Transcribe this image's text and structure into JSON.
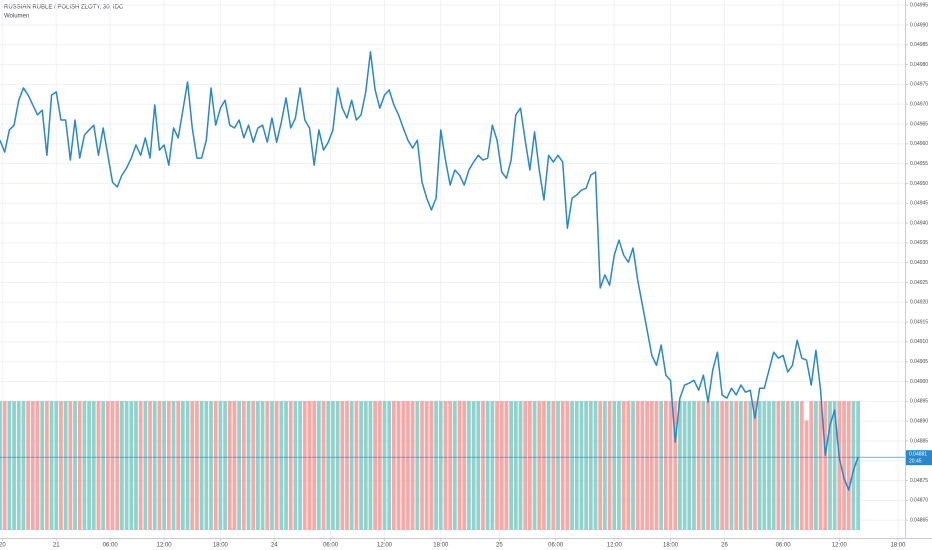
{
  "chart_data": {
    "type": "line",
    "title": "RUSSIAN RUBLE / POLISH ZLOTY, 30, IDC",
    "subtitle": "Wolumen",
    "series": [
      {
        "name": "RUSSIAN RUBLE / POLISH ZLOTY",
        "color": "#2a87c8",
        "values": [
          0.049609,
          0.049579,
          0.049635,
          0.049647,
          0.04971,
          0.049741,
          0.049723,
          0.049698,
          0.049673,
          0.049685,
          0.049571,
          0.049723,
          0.049731,
          0.04966,
          0.04966,
          0.049559,
          0.04966,
          0.049564,
          0.049622,
          0.049635,
          0.049647,
          0.049571,
          0.04964,
          0.049571,
          0.049503,
          0.049491,
          0.049521,
          0.049539,
          0.049564,
          0.049597,
          0.049571,
          0.049615,
          0.049564,
          0.049698,
          0.049584,
          0.049597,
          0.049546,
          0.04964,
          0.049615,
          0.049685,
          0.049756,
          0.04964,
          0.049564,
          0.049564,
          0.049609,
          0.049741,
          0.049647,
          0.04969,
          0.04971,
          0.049647,
          0.04964,
          0.04966,
          0.049615,
          0.049647,
          0.049604,
          0.04964,
          0.049647,
          0.049604,
          0.049665,
          0.049604,
          0.049655,
          0.049716,
          0.04964,
          0.049665,
          0.049741,
          0.04966,
          0.04964,
          0.049546,
          0.049635,
          0.049584,
          0.049604,
          0.049635,
          0.049741,
          0.04969,
          0.049665,
          0.04971,
          0.04966,
          0.049673,
          0.049731,
          0.049832,
          0.049736,
          0.04969,
          0.049723,
          0.049736,
          0.049698,
          0.049673,
          0.04964,
          0.049609,
          0.049589,
          0.049609,
          0.049503,
          0.049463,
          0.049433,
          0.049463,
          0.049635,
          0.049559,
          0.049496,
          0.049534,
          0.049521,
          0.049496,
          0.049534,
          0.049554,
          0.049571,
          0.049559,
          0.049564,
          0.049647,
          0.049609,
          0.049529,
          0.049513,
          0.049559,
          0.049673,
          0.04969,
          0.049609,
          0.049534,
          0.04963,
          0.049534,
          0.049458,
          0.049571,
          0.049554,
          0.049571,
          0.049554,
          0.049387,
          0.049463,
          0.049471,
          0.049483,
          0.049488,
          0.049521,
          0.049529,
          0.049236,
          0.049269,
          0.049243,
          0.049319,
          0.049357,
          0.049319,
          0.049301,
          0.049337,
          0.049256,
          0.049193,
          0.04913,
          0.049066,
          0.049041,
          0.049092,
          0.049016,
          0.049003,
          0.048847,
          0.048958,
          0.048991,
          0.048996,
          0.049003,
          0.048978,
          0.049016,
          0.048948,
          0.049029,
          0.049074,
          0.048966,
          0.048958,
          0.048983,
          0.048966,
          0.048991,
          0.048973,
          0.048978,
          0.048907,
          0.048983,
          0.048983,
          0.049029,
          0.049074,
          0.049059,
          0.049066,
          0.049024,
          0.049041,
          0.049104,
          0.049059,
          0.049054,
          0.048991,
          0.049079,
          0.048978,
          0.048814,
          0.04889,
          0.048928,
          0.048806,
          0.048756,
          0.048726,
          0.048776,
          0.048809
        ]
      }
    ],
    "volume": {
      "name": "Wolumen",
      "up_color": "#92d2cc",
      "down_color": "#f7a9a7",
      "ylim": [
        0,
        1
      ],
      "values": [
        1,
        1,
        1,
        1,
        1,
        1,
        1,
        1,
        1,
        1,
        1,
        1,
        1,
        1,
        1,
        1,
        1,
        1,
        1,
        1,
        1,
        1,
        1,
        1,
        1,
        1,
        1,
        1,
        1,
        1,
        1,
        1,
        1,
        1,
        1,
        1,
        1,
        1,
        1,
        1,
        1,
        1,
        1,
        1,
        1,
        1,
        1,
        1,
        1,
        1,
        1,
        1,
        1,
        1,
        1,
        1,
        1,
        1,
        1,
        1,
        1,
        1,
        1,
        1,
        1,
        1,
        1,
        1,
        1,
        1,
        1,
        1,
        1,
        1,
        1,
        1,
        1,
        1,
        1,
        1,
        1,
        1,
        1,
        1,
        1,
        1,
        1,
        1,
        1,
        1,
        1,
        1,
        1,
        1,
        1,
        1,
        1,
        1,
        1,
        1,
        1,
        1,
        1,
        1,
        1,
        1,
        1,
        1,
        1,
        1,
        1,
        1,
        1,
        1,
        1,
        1,
        1,
        1,
        1,
        1,
        1,
        1,
        1,
        1,
        1,
        1,
        1,
        1,
        1,
        1,
        1,
        1,
        1,
        1,
        1,
        1,
        1,
        1,
        1,
        1,
        1,
        1,
        1,
        1,
        1,
        1,
        1,
        1,
        1,
        1,
        1,
        1,
        1,
        1,
        1,
        1,
        1,
        1,
        1,
        1,
        1,
        1,
        1,
        1,
        1,
        1,
        1,
        1,
        1,
        1,
        1,
        1,
        0.85,
        1,
        1,
        1,
        1,
        1,
        1,
        1,
        1,
        1,
        1,
        1
      ]
    },
    "price_label": "0.04881",
    "timer": "20:45",
    "xlim": [
      0,
      193
    ],
    "xticks": [
      {
        "value": 0.5,
        "label": "20"
      },
      {
        "value": 12,
        "label": "21"
      },
      {
        "value": 23.5,
        "label": "06:00"
      },
      {
        "value": 35,
        "label": "12:00"
      },
      {
        "value": 47,
        "label": "18:00"
      },
      {
        "value": 58.5,
        "label": "24"
      },
      {
        "value": 70.5,
        "label": "06:00"
      },
      {
        "value": 82,
        "label": "12:00"
      },
      {
        "value": 94,
        "label": "18:00"
      },
      {
        "value": 106.5,
        "label": "25"
      },
      {
        "value": 118.5,
        "label": "06:00"
      },
      {
        "value": 131,
        "label": "12:00"
      },
      {
        "value": 143,
        "label": "18:00"
      },
      {
        "value": 154.5,
        "label": "26"
      },
      {
        "value": 167,
        "label": "06:00"
      },
      {
        "value": 179,
        "label": "12:00"
      },
      {
        "value": 191.5,
        "label": "18:00"
      }
    ],
    "ylim": [
      0.048605,
      0.049963
    ],
    "yticks": [
      0.04865,
      {
        "value": 0.0487,
        "label": "0.04870"
      },
      0.04875,
      {
        "value": 0.0488,
        "label": "0.04880"
      },
      0.04885,
      {
        "value": 0.0489,
        "label": "0.04890"
      },
      0.04895,
      {
        "value": 0.049,
        "label": "0.04900"
      },
      0.04905,
      {
        "value": 0.0491,
        "label": "0.04910"
      },
      0.04915,
      {
        "value": 0.0492,
        "label": "0.04920"
      },
      0.04925,
      {
        "value": 0.0493,
        "label": "0.04930"
      },
      0.04935,
      {
        "value": 0.0494,
        "label": "0.04940"
      },
      0.04945,
      {
        "value": 0.0495,
        "label": "0.04950"
      },
      0.04955,
      {
        "value": 0.0496,
        "label": "0.04960"
      },
      0.04965,
      {
        "value": 0.0497,
        "label": "0.04970"
      },
      0.04975,
      {
        "value": 0.0498,
        "label": "0.04980"
      },
      0.04985,
      {
        "value": 0.0499,
        "label": "0.04990"
      },
      0.04995
    ],
    "grid": true
  }
}
